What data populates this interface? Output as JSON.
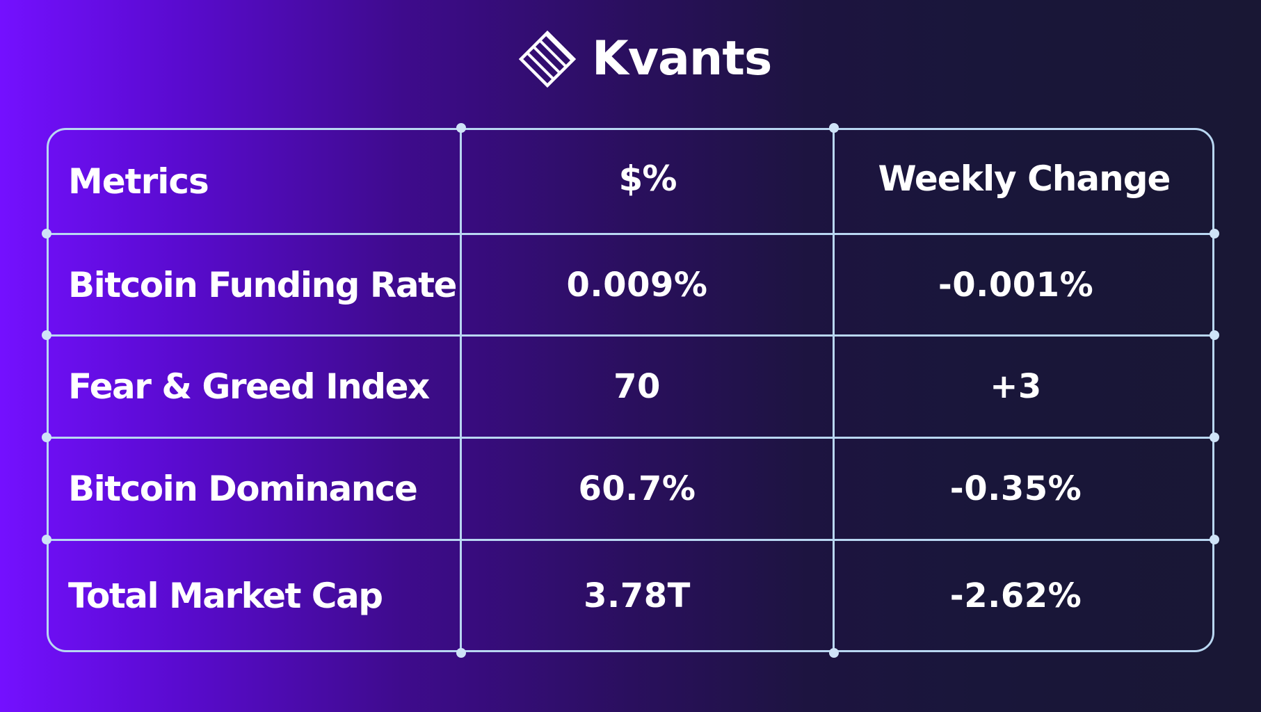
{
  "brand": {
    "name": "Kvants",
    "logo_icon": "striped-diamond-icon",
    "text_color": "#ffffff"
  },
  "colors": {
    "background_left": "#7410ff",
    "background_right": "#191734",
    "grid_line": "#b9d7f2"
  },
  "table": {
    "headers": [
      "Metrics",
      "$%",
      "Weekly Change"
    ],
    "rows": [
      {
        "metric": "Bitcoin Funding Rate",
        "value": "0.009%",
        "weekly_change": "-0.001%"
      },
      {
        "metric": "Fear & Greed Index",
        "value": "70",
        "weekly_change": "+3"
      },
      {
        "metric": "Bitcoin Dominance",
        "value": "60.7%",
        "weekly_change": "-0.35%"
      },
      {
        "metric": "Total Market Cap",
        "value": "3.78T",
        "weekly_change": "-2.62%"
      }
    ]
  }
}
